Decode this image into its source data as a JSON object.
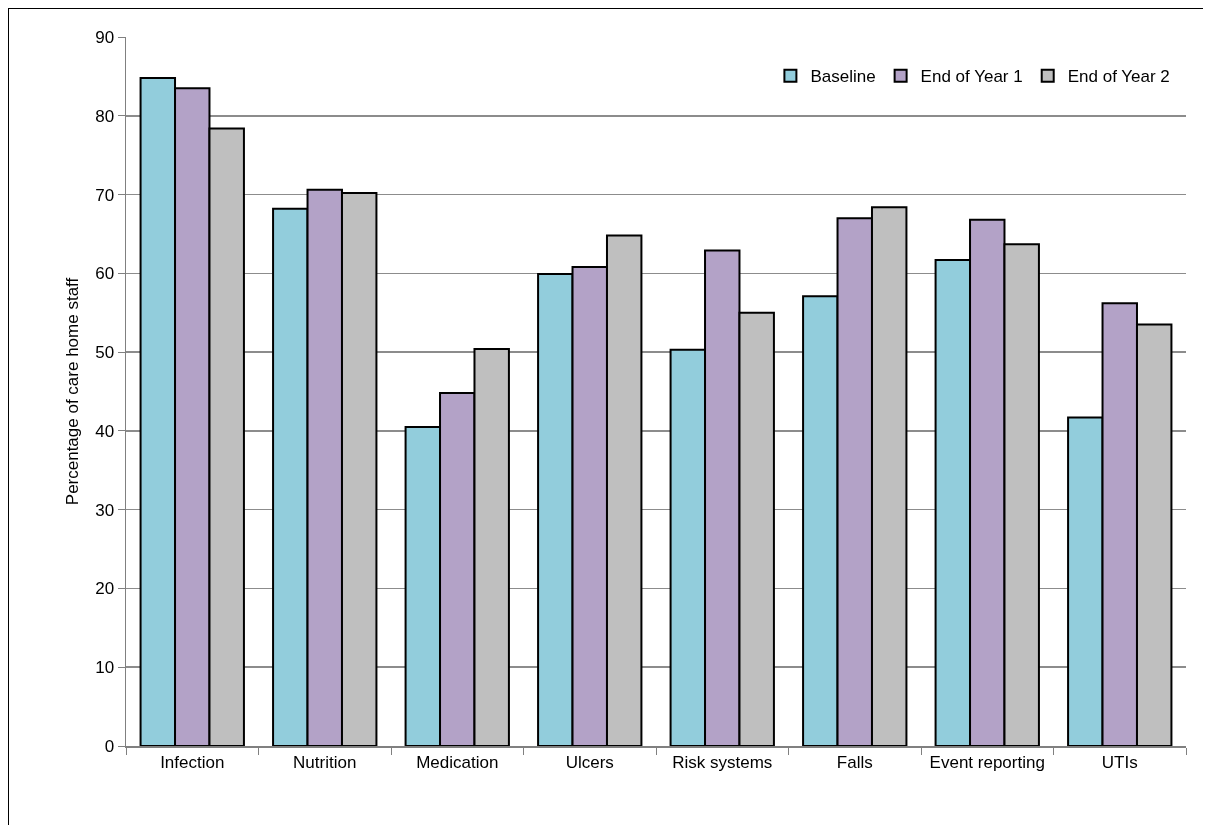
{
  "chart_data": {
    "type": "bar",
    "categories": [
      "Infection",
      "Nutrition",
      "Medication",
      "Ulcers",
      "Risk systems",
      "Falls",
      "Event reporting",
      "UTIs"
    ],
    "series": [
      {
        "name": "Baseline",
        "color": "#92cddc",
        "values": [
          84.8,
          68.2,
          40.5,
          59.9,
          50.3,
          57.1,
          61.7,
          41.7
        ]
      },
      {
        "name": "End of Year 1",
        "color": "#b3a2c7",
        "values": [
          83.5,
          70.6,
          44.8,
          60.8,
          62.9,
          67.0,
          66.8,
          56.2
        ]
      },
      {
        "name": "End of Year 2",
        "color": "#bfbfbf",
        "values": [
          78.4,
          70.2,
          50.4,
          64.8,
          55.0,
          68.4,
          63.7,
          53.5
        ]
      }
    ],
    "ylabel": "Percentage of care home staff",
    "ylim": [
      0,
      90
    ],
    "yticks": [
      0,
      10,
      20,
      30,
      40,
      50,
      60,
      70,
      80,
      90
    ],
    "grid": "y",
    "legend": "top right"
  }
}
